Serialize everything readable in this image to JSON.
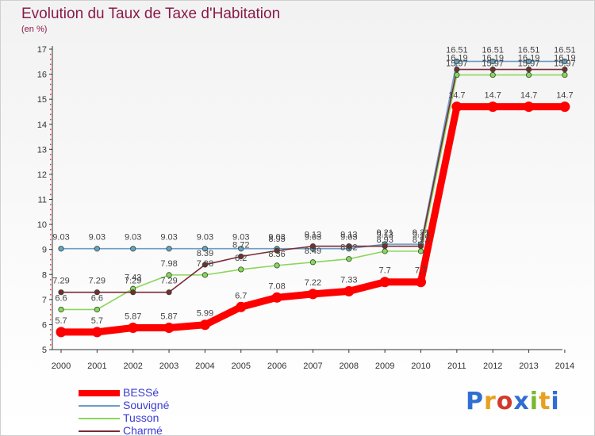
{
  "chart_data": {
    "type": "line",
    "title": "Evolution du Taux de Taxe d'Habitation",
    "subtitle": "(en %)",
    "x": [
      "2000",
      "2001",
      "2002",
      "2003",
      "2004",
      "2005",
      "2006",
      "2007",
      "2008",
      "2009",
      "2010",
      "2011",
      "2012",
      "2013",
      "2014"
    ],
    "ylim": [
      5,
      17
    ],
    "yticks": [
      5,
      6,
      7,
      8,
      9,
      10,
      11,
      12,
      13,
      14,
      15,
      16,
      17
    ],
    "grid": false,
    "legend_position": "bottom-left",
    "series": [
      {
        "name": "BESSé",
        "color": "#ff0000",
        "values": [
          5.7,
          5.7,
          5.87,
          5.87,
          5.99,
          6.7,
          7.08,
          7.22,
          7.33,
          7.7,
          7.7,
          14.7,
          14.7,
          14.7,
          14.7
        ],
        "labels": [
          "5.7",
          "5.7",
          "5.87",
          "5.87",
          "5.99",
          "6.7",
          "7.08",
          "7.22",
          "7.33",
          "7.7",
          "7.7",
          "14.7",
          "14.7",
          "14.7",
          "14.7"
        ]
      },
      {
        "name": "Souvigné",
        "color": "#6a9ec9",
        "values": [
          9.03,
          9.03,
          9.03,
          9.03,
          9.03,
          9.03,
          9.03,
          9.03,
          9.03,
          9.21,
          9.21,
          16.51,
          16.51,
          16.51,
          16.51
        ],
        "labels": [
          "9.03",
          "9.03",
          "9.03",
          "9.03",
          "9.03",
          "9.03",
          "9.03",
          "9.03",
          "9.03",
          "9.21",
          "9.21",
          "16.51",
          "16.51",
          "16.51",
          "16.51"
        ]
      },
      {
        "name": "Tusson",
        "color": "#8bd65a",
        "values": [
          6.6,
          6.6,
          7.43,
          7.98,
          7.98,
          8.2,
          8.36,
          8.49,
          8.62,
          8.93,
          8.93,
          15.97,
          15.97,
          15.97,
          15.97
        ],
        "labels": [
          "6.6",
          "6.6",
          "7.43",
          "7.98",
          "7.98",
          "8.2",
          "8.36",
          "8.49",
          "8.62",
          "8.93",
          "8.93",
          "15.97",
          "15.97",
          "15.97",
          "15.97"
        ]
      },
      {
        "name": "Charmé",
        "color": "#7a2a36",
        "values": [
          7.29,
          7.29,
          7.29,
          7.29,
          8.39,
          8.72,
          8.95,
          9.13,
          9.13,
          9.13,
          9.13,
          16.19,
          16.19,
          16.19,
          16.19
        ],
        "labels": [
          "7.29",
          "7.29",
          "7.29",
          "7.29",
          "8.39",
          "8.72",
          "8.95",
          "9.13",
          "9.13",
          "9.13",
          "9.13",
          "16.19",
          "16.19",
          "16.19",
          "16.19"
        ]
      }
    ]
  },
  "brand": {
    "logo_text": "Proxiti"
  }
}
